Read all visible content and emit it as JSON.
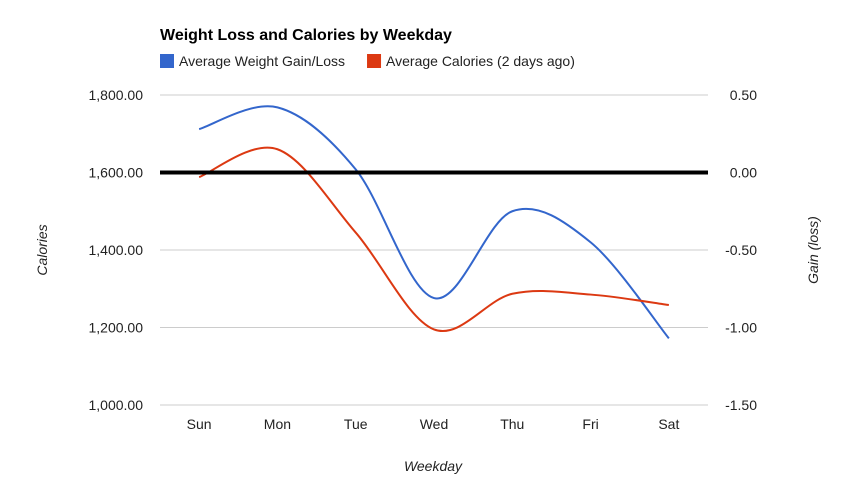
{
  "chart_data": {
    "type": "line",
    "title": "Weight Loss and Calories by Weekday",
    "xlabel": "Weekday",
    "ylabel_left": "Calories",
    "ylabel_right": "Gain (loss)",
    "categories": [
      "Sun",
      "Mon",
      "Tue",
      "Wed",
      "Thu",
      "Fri",
      "Sat"
    ],
    "y_left": {
      "min": 1000,
      "max": 1800,
      "ticks": [
        "1,800.00",
        "1,600.00",
        "1,400.00",
        "1,200.00",
        "1,000.00"
      ]
    },
    "y_right": {
      "min": -1.5,
      "max": 0.5,
      "ticks": [
        "0.50",
        "0.00",
        "-0.50",
        "-1.00",
        "-1.50"
      ]
    },
    "baseline_value_right": 0.0,
    "grid": true,
    "legend_position": "top-left",
    "series": [
      {
        "name": "Average Weight Gain/Loss",
        "axis": "right",
        "color": "#3366cc",
        "values": [
          0.28,
          0.42,
          0.02,
          -0.81,
          -0.25,
          -0.45,
          -1.07
        ]
      },
      {
        "name": "Average Calories (2 days ago)",
        "axis": "left",
        "color": "#dc3912",
        "values": [
          1588,
          1660,
          1445,
          1195,
          1287,
          1285,
          1258
        ]
      }
    ]
  }
}
